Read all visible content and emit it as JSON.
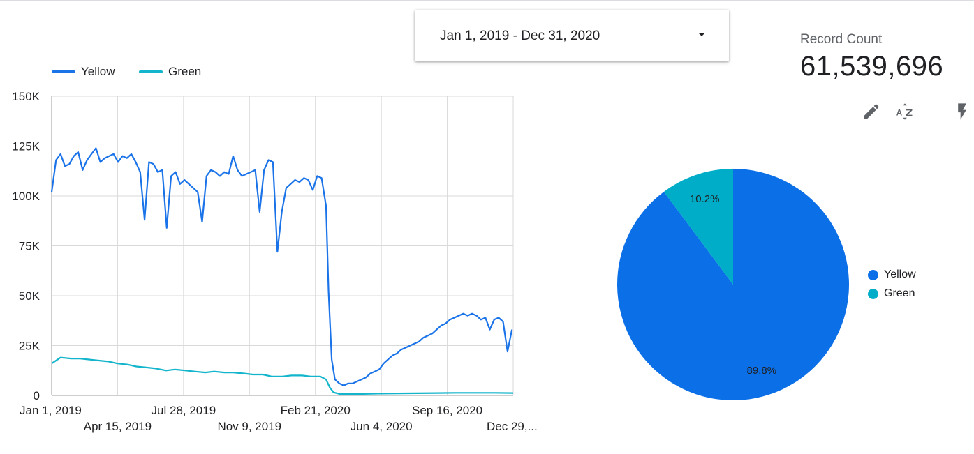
{
  "date_range": {
    "label": "Jan 1, 2019 - Dec 31, 2020"
  },
  "scorecard": {
    "label": "Record Count",
    "value": "61,539,696"
  },
  "toolbar": {
    "edit": "pencil-icon",
    "sort": "sort-az-icon",
    "optimize": "lightning-icon"
  },
  "colors": {
    "yellow": "#1a73e8",
    "green": "#12b5cb",
    "pie_yellow": "#0b6fe8",
    "pie_green": "#00adc8"
  },
  "chart_data": [
    {
      "type": "line",
      "x_tick_labels": [
        "Jan 1, 2019",
        "Apr 15, 2019",
        "Jul 28, 2019",
        "Nov 9, 2019",
        "Feb 21, 2020",
        "Jun 4, 2020",
        "Sep 16, 2020",
        "Dec 29,..."
      ],
      "y_tick_labels": [
        "0",
        "25K",
        "50K",
        "75K",
        "100K",
        "125K",
        "150K"
      ],
      "ylim": [
        0,
        150000
      ],
      "xlim": [
        "2019-01-01",
        "2020-12-31"
      ],
      "grid": true,
      "legend_position": "top-left",
      "series": [
        {
          "name": "Yellow",
          "color": "#1a73e8",
          "points": [
            [
              "2019-01-01",
              102000
            ],
            [
              "2019-01-08",
              118000
            ],
            [
              "2019-01-15",
              121000
            ],
            [
              "2019-01-22",
              115000
            ],
            [
              "2019-01-29",
              116000
            ],
            [
              "2019-02-05",
              120000
            ],
            [
              "2019-02-12",
              122000
            ],
            [
              "2019-02-19",
              113000
            ],
            [
              "2019-02-26",
              118000
            ],
            [
              "2019-03-05",
              121000
            ],
            [
              "2019-03-12",
              124000
            ],
            [
              "2019-03-19",
              117000
            ],
            [
              "2019-03-26",
              119000
            ],
            [
              "2019-04-02",
              120000
            ],
            [
              "2019-04-09",
              121000
            ],
            [
              "2019-04-16",
              117000
            ],
            [
              "2019-04-23",
              120000
            ],
            [
              "2019-04-30",
              119000
            ],
            [
              "2019-05-07",
              121000
            ],
            [
              "2019-05-14",
              117000
            ],
            [
              "2019-05-21",
              112000
            ],
            [
              "2019-05-28",
              88000
            ],
            [
              "2019-06-04",
              117000
            ],
            [
              "2019-06-11",
              116000
            ],
            [
              "2019-06-18",
              112000
            ],
            [
              "2019-06-25",
              113000
            ],
            [
              "2019-07-02",
              84000
            ],
            [
              "2019-07-09",
              110000
            ],
            [
              "2019-07-16",
              112000
            ],
            [
              "2019-07-23",
              106000
            ],
            [
              "2019-07-30",
              108000
            ],
            [
              "2019-08-06",
              106000
            ],
            [
              "2019-08-13",
              104000
            ],
            [
              "2019-08-20",
              102000
            ],
            [
              "2019-08-27",
              87000
            ],
            [
              "2019-09-03",
              110000
            ],
            [
              "2019-09-10",
              113000
            ],
            [
              "2019-09-17",
              112000
            ],
            [
              "2019-09-24",
              110000
            ],
            [
              "2019-10-01",
              112000
            ],
            [
              "2019-10-08",
              111000
            ],
            [
              "2019-10-15",
              120000
            ],
            [
              "2019-10-22",
              113000
            ],
            [
              "2019-10-29",
              110000
            ],
            [
              "2019-11-05",
              111000
            ],
            [
              "2019-11-12",
              112000
            ],
            [
              "2019-11-19",
              113000
            ],
            [
              "2019-11-26",
              92000
            ],
            [
              "2019-12-03",
              113000
            ],
            [
              "2019-12-10",
              118000
            ],
            [
              "2019-12-17",
              117000
            ],
            [
              "2019-12-24",
              72000
            ],
            [
              "2019-12-31",
              92000
            ],
            [
              "2020-01-07",
              104000
            ],
            [
              "2020-01-14",
              106000
            ],
            [
              "2020-01-21",
              108000
            ],
            [
              "2020-01-28",
              107000
            ],
            [
              "2020-02-04",
              109000
            ],
            [
              "2020-02-11",
              108000
            ],
            [
              "2020-02-18",
              103000
            ],
            [
              "2020-02-25",
              110000
            ],
            [
              "2020-03-03",
              109000
            ],
            [
              "2020-03-10",
              95000
            ],
            [
              "2020-03-14",
              52000
            ],
            [
              "2020-03-19",
              18000
            ],
            [
              "2020-03-24",
              8000
            ],
            [
              "2020-03-31",
              6000
            ],
            [
              "2020-04-07",
              5000
            ],
            [
              "2020-04-14",
              6000
            ],
            [
              "2020-04-21",
              6000
            ],
            [
              "2020-04-28",
              7000
            ],
            [
              "2020-05-05",
              8000
            ],
            [
              "2020-05-12",
              9000
            ],
            [
              "2020-05-19",
              11000
            ],
            [
              "2020-05-26",
              12000
            ],
            [
              "2020-06-02",
              13000
            ],
            [
              "2020-06-09",
              16000
            ],
            [
              "2020-06-16",
              18000
            ],
            [
              "2020-06-23",
              20000
            ],
            [
              "2020-06-30",
              21000
            ],
            [
              "2020-07-07",
              23000
            ],
            [
              "2020-07-14",
              24000
            ],
            [
              "2020-07-21",
              25000
            ],
            [
              "2020-07-28",
              26000
            ],
            [
              "2020-08-04",
              27000
            ],
            [
              "2020-08-11",
              29000
            ],
            [
              "2020-08-18",
              30000
            ],
            [
              "2020-08-25",
              31000
            ],
            [
              "2020-09-01",
              33000
            ],
            [
              "2020-09-08",
              35000
            ],
            [
              "2020-09-15",
              36000
            ],
            [
              "2020-09-22",
              38000
            ],
            [
              "2020-09-29",
              39000
            ],
            [
              "2020-10-06",
              40000
            ],
            [
              "2020-10-13",
              41000
            ],
            [
              "2020-10-20",
              40000
            ],
            [
              "2020-10-27",
              41000
            ],
            [
              "2020-11-03",
              40000
            ],
            [
              "2020-11-10",
              38000
            ],
            [
              "2020-11-17",
              39000
            ],
            [
              "2020-11-24",
              33000
            ],
            [
              "2020-12-01",
              38000
            ],
            [
              "2020-12-08",
              39000
            ],
            [
              "2020-12-15",
              37000
            ],
            [
              "2020-12-22",
              22000
            ],
            [
              "2020-12-29",
              33000
            ]
          ]
        },
        {
          "name": "Green",
          "color": "#12b5cb",
          "points": [
            [
              "2019-01-01",
              16000
            ],
            [
              "2019-01-15",
              19000
            ],
            [
              "2019-02-01",
              18500
            ],
            [
              "2019-02-15",
              18500
            ],
            [
              "2019-03-01",
              18000
            ],
            [
              "2019-03-15",
              17500
            ],
            [
              "2019-04-01",
              17000
            ],
            [
              "2019-04-15",
              16000
            ],
            [
              "2019-05-01",
              15500
            ],
            [
              "2019-05-15",
              14500
            ],
            [
              "2019-06-01",
              14000
            ],
            [
              "2019-06-15",
              13500
            ],
            [
              "2019-07-01",
              12500
            ],
            [
              "2019-07-15",
              13000
            ],
            [
              "2019-08-01",
              12500
            ],
            [
              "2019-08-15",
              12000
            ],
            [
              "2019-09-01",
              11500
            ],
            [
              "2019-09-15",
              12000
            ],
            [
              "2019-10-01",
              11500
            ],
            [
              "2019-10-15",
              11500
            ],
            [
              "2019-11-01",
              11000
            ],
            [
              "2019-11-15",
              10500
            ],
            [
              "2019-12-01",
              10500
            ],
            [
              "2019-12-15",
              9500
            ],
            [
              "2020-01-01",
              9500
            ],
            [
              "2020-01-15",
              10000
            ],
            [
              "2020-02-01",
              10000
            ],
            [
              "2020-02-15",
              9500
            ],
            [
              "2020-03-01",
              9500
            ],
            [
              "2020-03-10",
              8000
            ],
            [
              "2020-03-16",
              4000
            ],
            [
              "2020-03-22",
              1500
            ],
            [
              "2020-04-01",
              700
            ],
            [
              "2020-05-01",
              700
            ],
            [
              "2020-06-01",
              900
            ],
            [
              "2020-07-01",
              1000
            ],
            [
              "2020-08-01",
              1100
            ],
            [
              "2020-09-01",
              1200
            ],
            [
              "2020-10-01",
              1300
            ],
            [
              "2020-11-01",
              1300
            ],
            [
              "2020-12-01",
              1300
            ],
            [
              "2020-12-31",
              1200
            ]
          ]
        }
      ]
    },
    {
      "type": "pie",
      "legend_position": "right",
      "slices": [
        {
          "name": "Yellow",
          "value": 89.8,
          "label": "89.8%",
          "color": "#0b6fe8"
        },
        {
          "name": "Green",
          "value": 10.2,
          "label": "10.2%",
          "color": "#00adc8"
        }
      ]
    }
  ]
}
